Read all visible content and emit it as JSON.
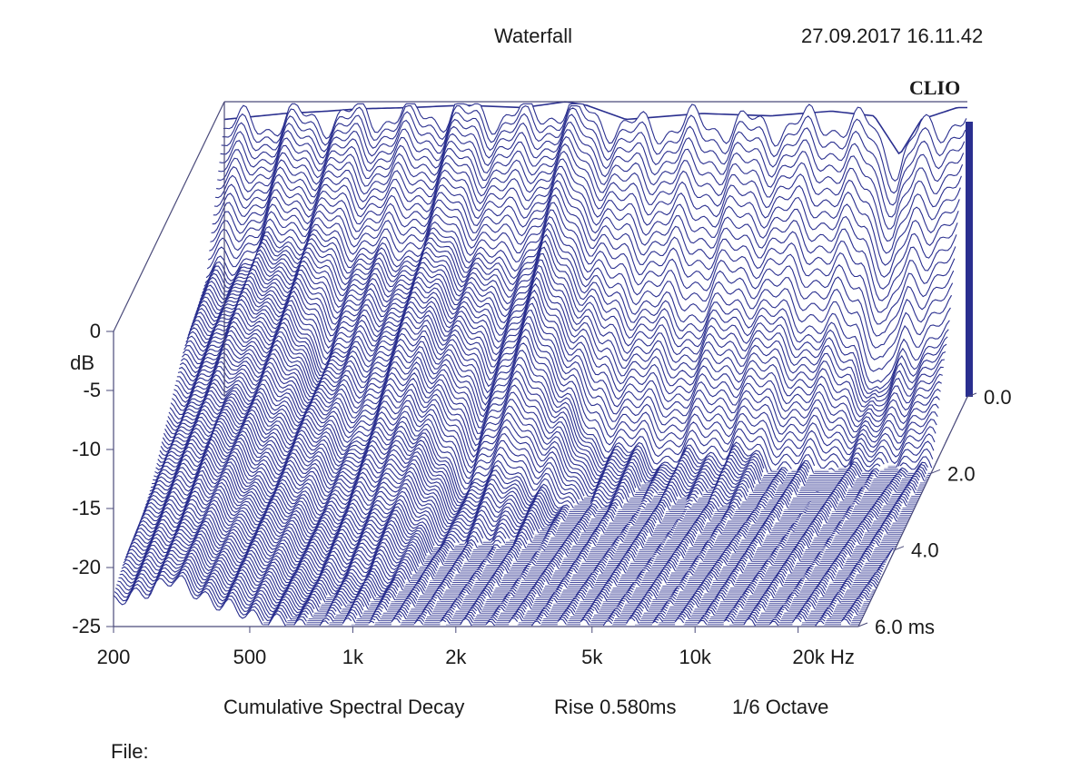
{
  "header": {
    "title": "Waterfall",
    "timestamp": "27.09.2017 16.11.42",
    "brand": "CLIO"
  },
  "footer": {
    "caption": "Cumulative Spectral Decay",
    "rise": "Rise 0.580ms",
    "smoothing": "1/6 Octave",
    "file_label": "File:"
  },
  "colors": {
    "curve": "#2a2f8f",
    "axis": "#4a4a7a"
  },
  "chart_data": {
    "type": "waterfall",
    "title": "Waterfall",
    "xlabel": "Hz",
    "ylabel": "dB",
    "zlabel": "ms",
    "x_scale": "log",
    "xlim": [
      200,
      30000
    ],
    "ylim": [
      -25,
      0
    ],
    "zlim": [
      0,
      6
    ],
    "x_ticks": [
      {
        "label": "200",
        "value": 200
      },
      {
        "label": "500",
        "value": 500
      },
      {
        "label": "1k",
        "value": 1000
      },
      {
        "label": "2k",
        "value": 2000
      },
      {
        "label": "5k",
        "value": 5000
      },
      {
        "label": "10k",
        "value": 10000
      },
      {
        "label": "20k",
        "value": 20000
      }
    ],
    "y_ticks": [
      {
        "label": "0",
        "value": 0
      },
      {
        "label": "-5",
        "value": -5
      },
      {
        "label": "-10",
        "value": -10
      },
      {
        "label": "-15",
        "value": -15
      },
      {
        "label": "-20",
        "value": -20
      },
      {
        "label": "-25",
        "value": -25
      }
    ],
    "z_ticks": [
      {
        "label": "0.0",
        "value": 0
      },
      {
        "label": "2.0",
        "value": 2
      },
      {
        "label": "4.0",
        "value": 4
      },
      {
        "label": "6.0",
        "value": 6
      }
    ],
    "initial_response": {
      "freq_hz": [
        200,
        300,
        400,
        500,
        700,
        1000,
        1500,
        2000,
        2300,
        3000,
        5000,
        8000,
        12000,
        16000,
        19000,
        22000,
        28000
      ],
      "level_db": [
        -1.5,
        -1.0,
        -0.8,
        -0.6,
        -0.5,
        -0.3,
        -0.5,
        0.0,
        -0.3,
        -1.5,
        -1.0,
        -1.2,
        -0.8,
        -1.2,
        -4.5,
        -1.5,
        -0.5
      ]
    },
    "series": [
      {
        "decay_ms": 0.0,
        "freq_hz": [
          200,
          300,
          400,
          500,
          700,
          1000,
          1500,
          2000,
          2300,
          3000,
          5000,
          8000,
          12000,
          16000,
          19000,
          22000,
          28000
        ],
        "level_db": [
          -1.5,
          -1.0,
          -0.8,
          -0.6,
          -0.5,
          -0.3,
          -0.5,
          0.0,
          -0.3,
          -1.5,
          -1.0,
          -1.2,
          -0.8,
          -1.2,
          -4.5,
          -1.5,
          -0.5
        ]
      },
      {
        "decay_ms": 1.0,
        "freq_hz": [
          200,
          300,
          400,
          500,
          700,
          1000,
          1500,
          2000,
          2300,
          3000,
          5000,
          8000,
          12000,
          16000,
          19000,
          22000,
          28000
        ],
        "level_db": [
          -12,
          -9,
          -8,
          -9,
          -10,
          -8,
          -11,
          -8,
          -9,
          -13,
          -15,
          -14,
          -16,
          -17,
          -22,
          -18,
          -17
        ]
      },
      {
        "decay_ms": 2.0,
        "freq_hz": [
          200,
          300,
          400,
          500,
          700,
          1000,
          1500,
          2000,
          2300,
          3000,
          5000,
          8000,
          12000,
          16000,
          19000,
          22000,
          28000
        ],
        "level_db": [
          -14,
          -11,
          -12,
          -15,
          -14,
          -12,
          -17,
          -14,
          -16,
          -22,
          -24,
          -23,
          -25,
          -25,
          -25,
          -25,
          -25
        ]
      },
      {
        "decay_ms": 3.0,
        "freq_hz": [
          200,
          300,
          400,
          500,
          700,
          1000,
          1500,
          2000,
          2300,
          3000,
          5000,
          8000,
          12000,
          16000,
          19000,
          22000,
          28000
        ],
        "level_db": [
          -17,
          -14,
          -16,
          -17,
          -19,
          -17,
          -23,
          -21,
          -23,
          -25,
          -25,
          -25,
          -25,
          -25,
          -25,
          -25,
          -25
        ]
      },
      {
        "decay_ms": 4.0,
        "freq_hz": [
          200,
          300,
          400,
          500,
          700,
          1000,
          1500,
          2000,
          2300,
          3000,
          5000,
          8000,
          12000,
          16000,
          19000,
          22000,
          28000
        ],
        "level_db": [
          -19,
          -16,
          -19,
          -20,
          -22,
          -21,
          -25,
          -25,
          -25,
          -25,
          -25,
          -25,
          -25,
          -25,
          -25,
          -25,
          -25
        ]
      },
      {
        "decay_ms": 5.0,
        "freq_hz": [
          200,
          300,
          400,
          500,
          700,
          1000,
          1500,
          2000,
          2300,
          3000,
          5000,
          8000,
          12000,
          16000,
          19000,
          22000,
          28000
        ],
        "level_db": [
          -21,
          -19,
          -21,
          -22,
          -24,
          -24,
          -25,
          -25,
          -25,
          -25,
          -25,
          -25,
          -25,
          -25,
          -25,
          -25,
          -25
        ]
      },
      {
        "decay_ms": 6.0,
        "freq_hz": [
          200,
          300,
          400,
          500,
          700,
          1000,
          1500,
          2000,
          2300,
          3000,
          5000,
          8000,
          12000,
          16000,
          19000,
          22000,
          28000
        ],
        "level_db": [
          -23,
          -21,
          -23,
          -24,
          -25,
          -25,
          -25,
          -25,
          -25,
          -25,
          -25,
          -25,
          -25,
          -25,
          -25,
          -25,
          -25
        ]
      }
    ],
    "grid": false,
    "legend": "none"
  }
}
